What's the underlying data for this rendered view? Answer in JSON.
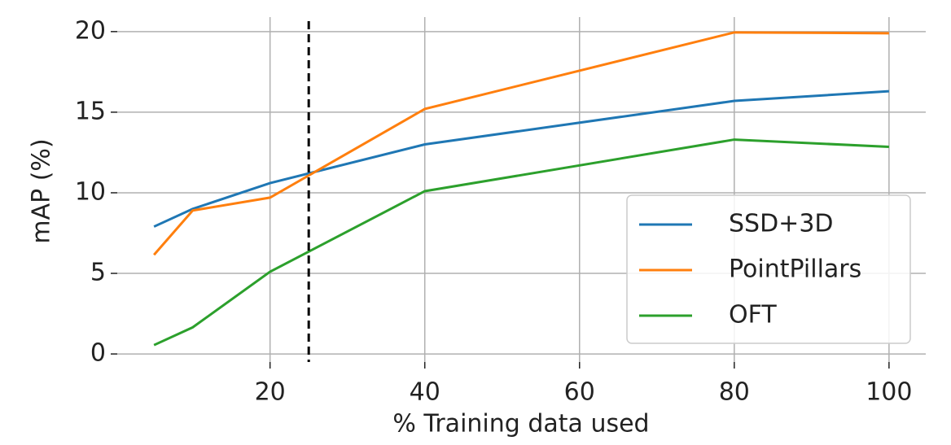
{
  "chart_data": {
    "type": "line",
    "x_label": "% Training data used",
    "y_label": "mAP (%)",
    "x": [
      5,
      10,
      20,
      40,
      80,
      100
    ],
    "series": [
      {
        "name": "SSD+3D",
        "color": "#1f77b4",
        "values": [
          7.9,
          9.0,
          10.6,
          13.0,
          15.7,
          16.3
        ]
      },
      {
        "name": "PointPillars",
        "color": "#ff7f0e",
        "values": [
          6.15,
          8.9,
          9.7,
          15.2,
          19.95,
          19.9
        ]
      },
      {
        "name": "OFT",
        "color": "#2ca02c",
        "values": [
          0.55,
          1.65,
          5.1,
          10.1,
          13.3,
          12.85
        ]
      }
    ],
    "xlim": [
      0.25,
      104.75
    ],
    "ylim": [
      -0.5,
      20.9
    ],
    "xticks": [
      20,
      40,
      60,
      80,
      100
    ],
    "yticks": [
      0,
      5,
      10,
      15,
      20
    ],
    "vline": 25,
    "grid": true,
    "legend": "lower right"
  }
}
